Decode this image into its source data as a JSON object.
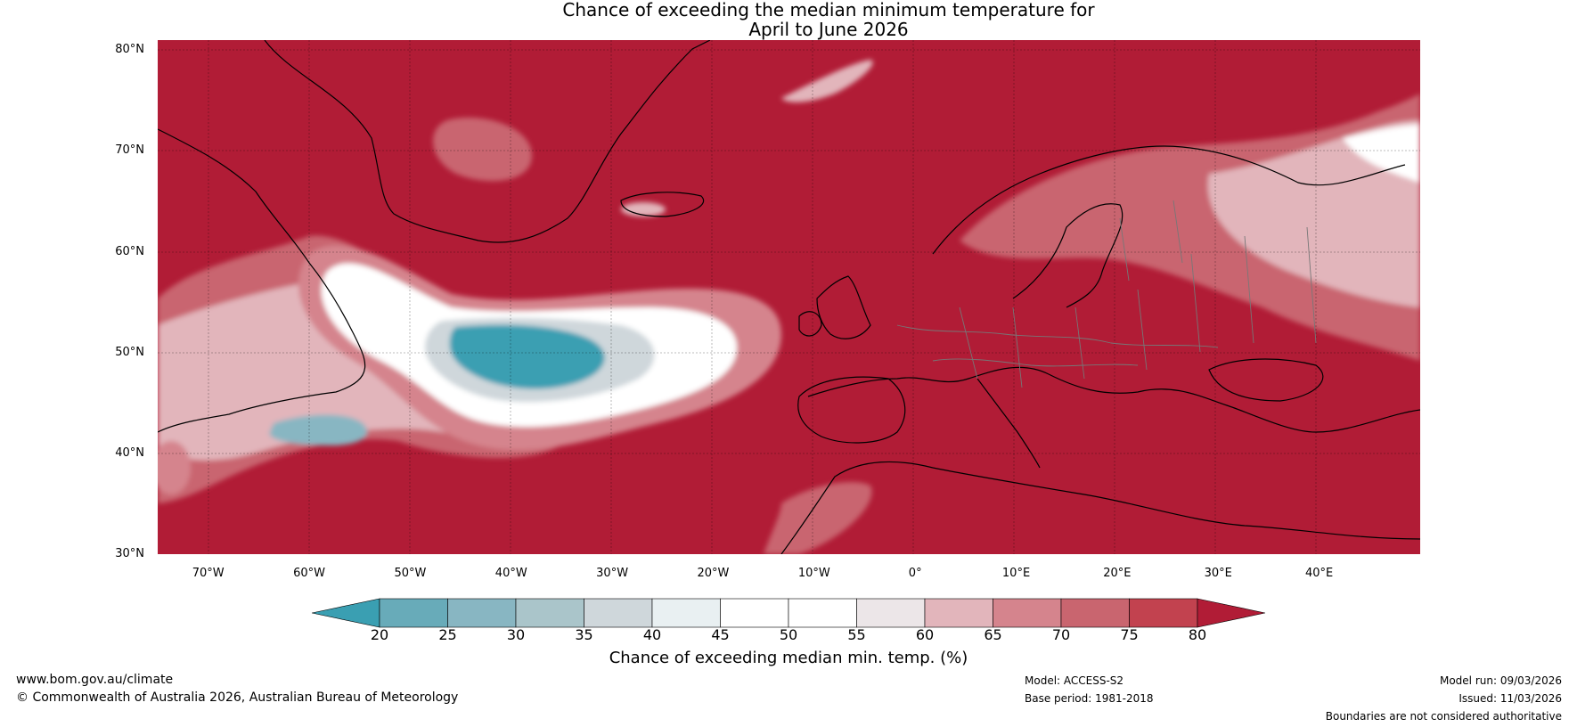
{
  "title": {
    "line1": "Chance of exceeding the median minimum temperature for",
    "line2": "April to June 2026"
  },
  "map": {
    "region": "North Atlantic and Europe",
    "lat_labels": [
      "80°N",
      "70°N",
      "60°N",
      "50°N",
      "40°N",
      "30°N"
    ],
    "lon_labels": [
      "70°W",
      "60°W",
      "50°W",
      "40°W",
      "30°W",
      "20°W",
      "10°W",
      "0°",
      "10°E",
      "20°E",
      "30°E",
      "40°E"
    ],
    "lat_range": [
      30,
      81
    ],
    "lon_range": [
      -75,
      50
    ],
    "background_category": "80+",
    "features": [
      {
        "name": "Labrador Sea / Newfoundland region",
        "value_range": "45-65"
      },
      {
        "name": "Mid North Atlantic cool anomaly",
        "value_range": "20-35"
      },
      {
        "name": "Scandinavia and western Russia",
        "value_range": "55-75"
      }
    ]
  },
  "colorbar": {
    "ticks": [
      "20",
      "25",
      "30",
      "35",
      "40",
      "45",
      "50",
      "55",
      "60",
      "65",
      "70",
      "75",
      "80"
    ],
    "colors": [
      "#3a9fb2",
      "#68abb9",
      "#88b6c2",
      "#aac5ca",
      "#cfd7db",
      "#e9f0f2",
      "#ffffff",
      "#ffffff",
      "#ece6e8",
      "#e2b5bb",
      "#d5848d",
      "#c9656f",
      "#c2424f",
      "#b11c36"
    ],
    "label": "Chance of exceeding median min. temp. (%)"
  },
  "footer": {
    "url": "www.bom.gov.au/climate",
    "copyright": "© Commonwealth of Australia 2026, Australian Bureau of Meteorology",
    "model": "Model: ACCESS-S2",
    "base_period": "Base period: 1981-2018",
    "model_run": "Model run: 09/03/2026",
    "issued": "Issued: 11/03/2026",
    "disclaimer": "Boundaries are not considered authoritative"
  },
  "style": {
    "ocean_land_fill": "#b11c36",
    "coast_color": "#000000",
    "border_color": "#777777"
  }
}
